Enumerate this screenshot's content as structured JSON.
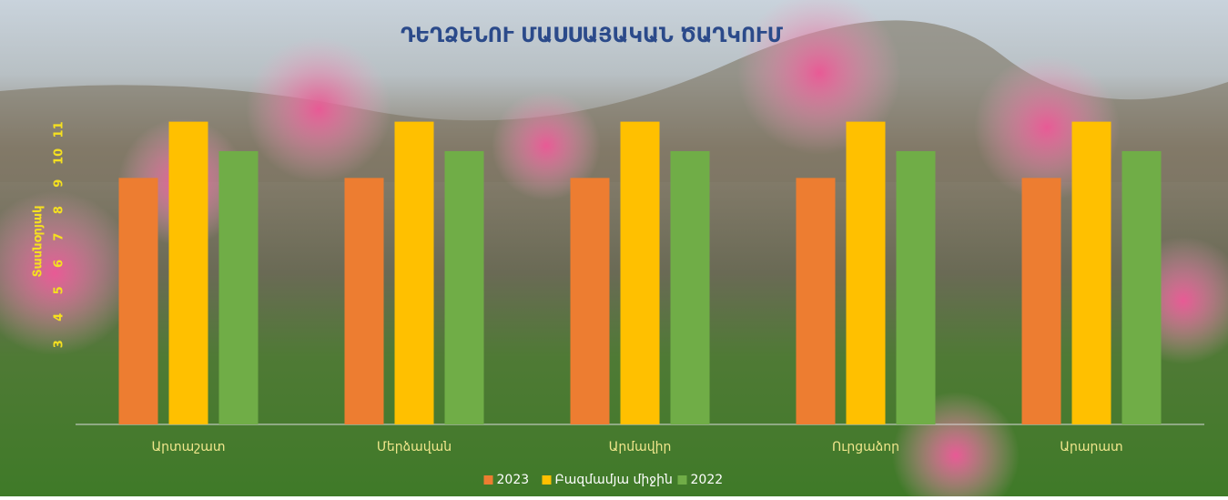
{
  "chart_data": {
    "type": "bar",
    "title": "ԴԵՂՁԵՆՈՒ ՄԱՍՍԱՅԱԿԱՆ ԾԱՂԿՈՒՄ",
    "y_label": "Տասնօրյակ",
    "categories": [
      "Արտաշատ",
      "Մերձավան",
      "Արմավիր",
      "Ուրցաձոր",
      "Արարատ"
    ],
    "series": [
      {
        "name": "2023",
        "color": "#ed7d31",
        "values": [
          9.2,
          9.2,
          9.2,
          9.2,
          9.2
        ]
      },
      {
        "name": "Բազմամյա միջին",
        "color": "#ffc000",
        "values": [
          11.3,
          11.3,
          11.3,
          11.3,
          11.3
        ]
      },
      {
        "name": "2022",
        "color": "#70ad47",
        "values": [
          10.2,
          10.2,
          10.2,
          10.2,
          10.2
        ]
      }
    ],
    "ylim": [
      0,
      12
    ],
    "yticks": [
      3,
      4,
      5,
      6,
      7,
      8,
      9,
      10,
      11
    ],
    "grid": false,
    "legend": "bottom"
  }
}
